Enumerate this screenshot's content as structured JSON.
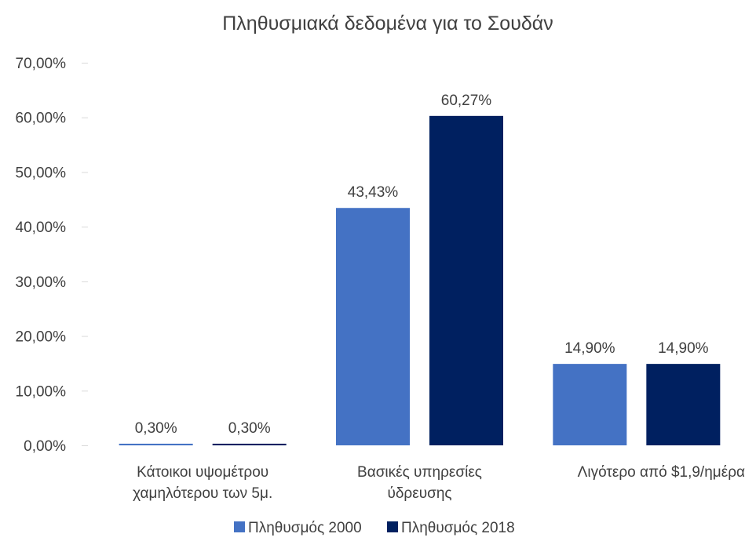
{
  "chart_data": {
    "type": "bar",
    "title": "Πληθυσμιακά δεδομένα για το Σουδάν",
    "categories": [
      [
        "Κάτοικοι υψομέτρου",
        "χαμηλότερου των 5μ."
      ],
      [
        "Βασικές υπηρεσίες",
        "ύδρευσης"
      ],
      [
        "Λιγότερο από $1,9/ημέρα"
      ]
    ],
    "series": [
      {
        "name": "Πληθυσμός 2000",
        "color": "#4472C4",
        "values": [
          0.3,
          43.43,
          14.9
        ],
        "labels": [
          "0,30%",
          "43,43%",
          "14,90%"
        ]
      },
      {
        "name": "Πληθυσμός 2018",
        "color": "#002060",
        "values": [
          0.3,
          60.27,
          14.9
        ],
        "labels": [
          "0,30%",
          "60,27%",
          "14,90%"
        ]
      }
    ],
    "ylim": [
      0,
      70
    ],
    "yticks": [
      0,
      10,
      20,
      30,
      40,
      50,
      60,
      70
    ],
    "ytick_labels": [
      "0,00%",
      "10,00%",
      "20,00%",
      "30,00%",
      "40,00%",
      "50,00%",
      "60,00%",
      "70,00%"
    ],
    "xlabel": "",
    "ylabel": "",
    "grid": false,
    "legend_position": "bottom"
  }
}
